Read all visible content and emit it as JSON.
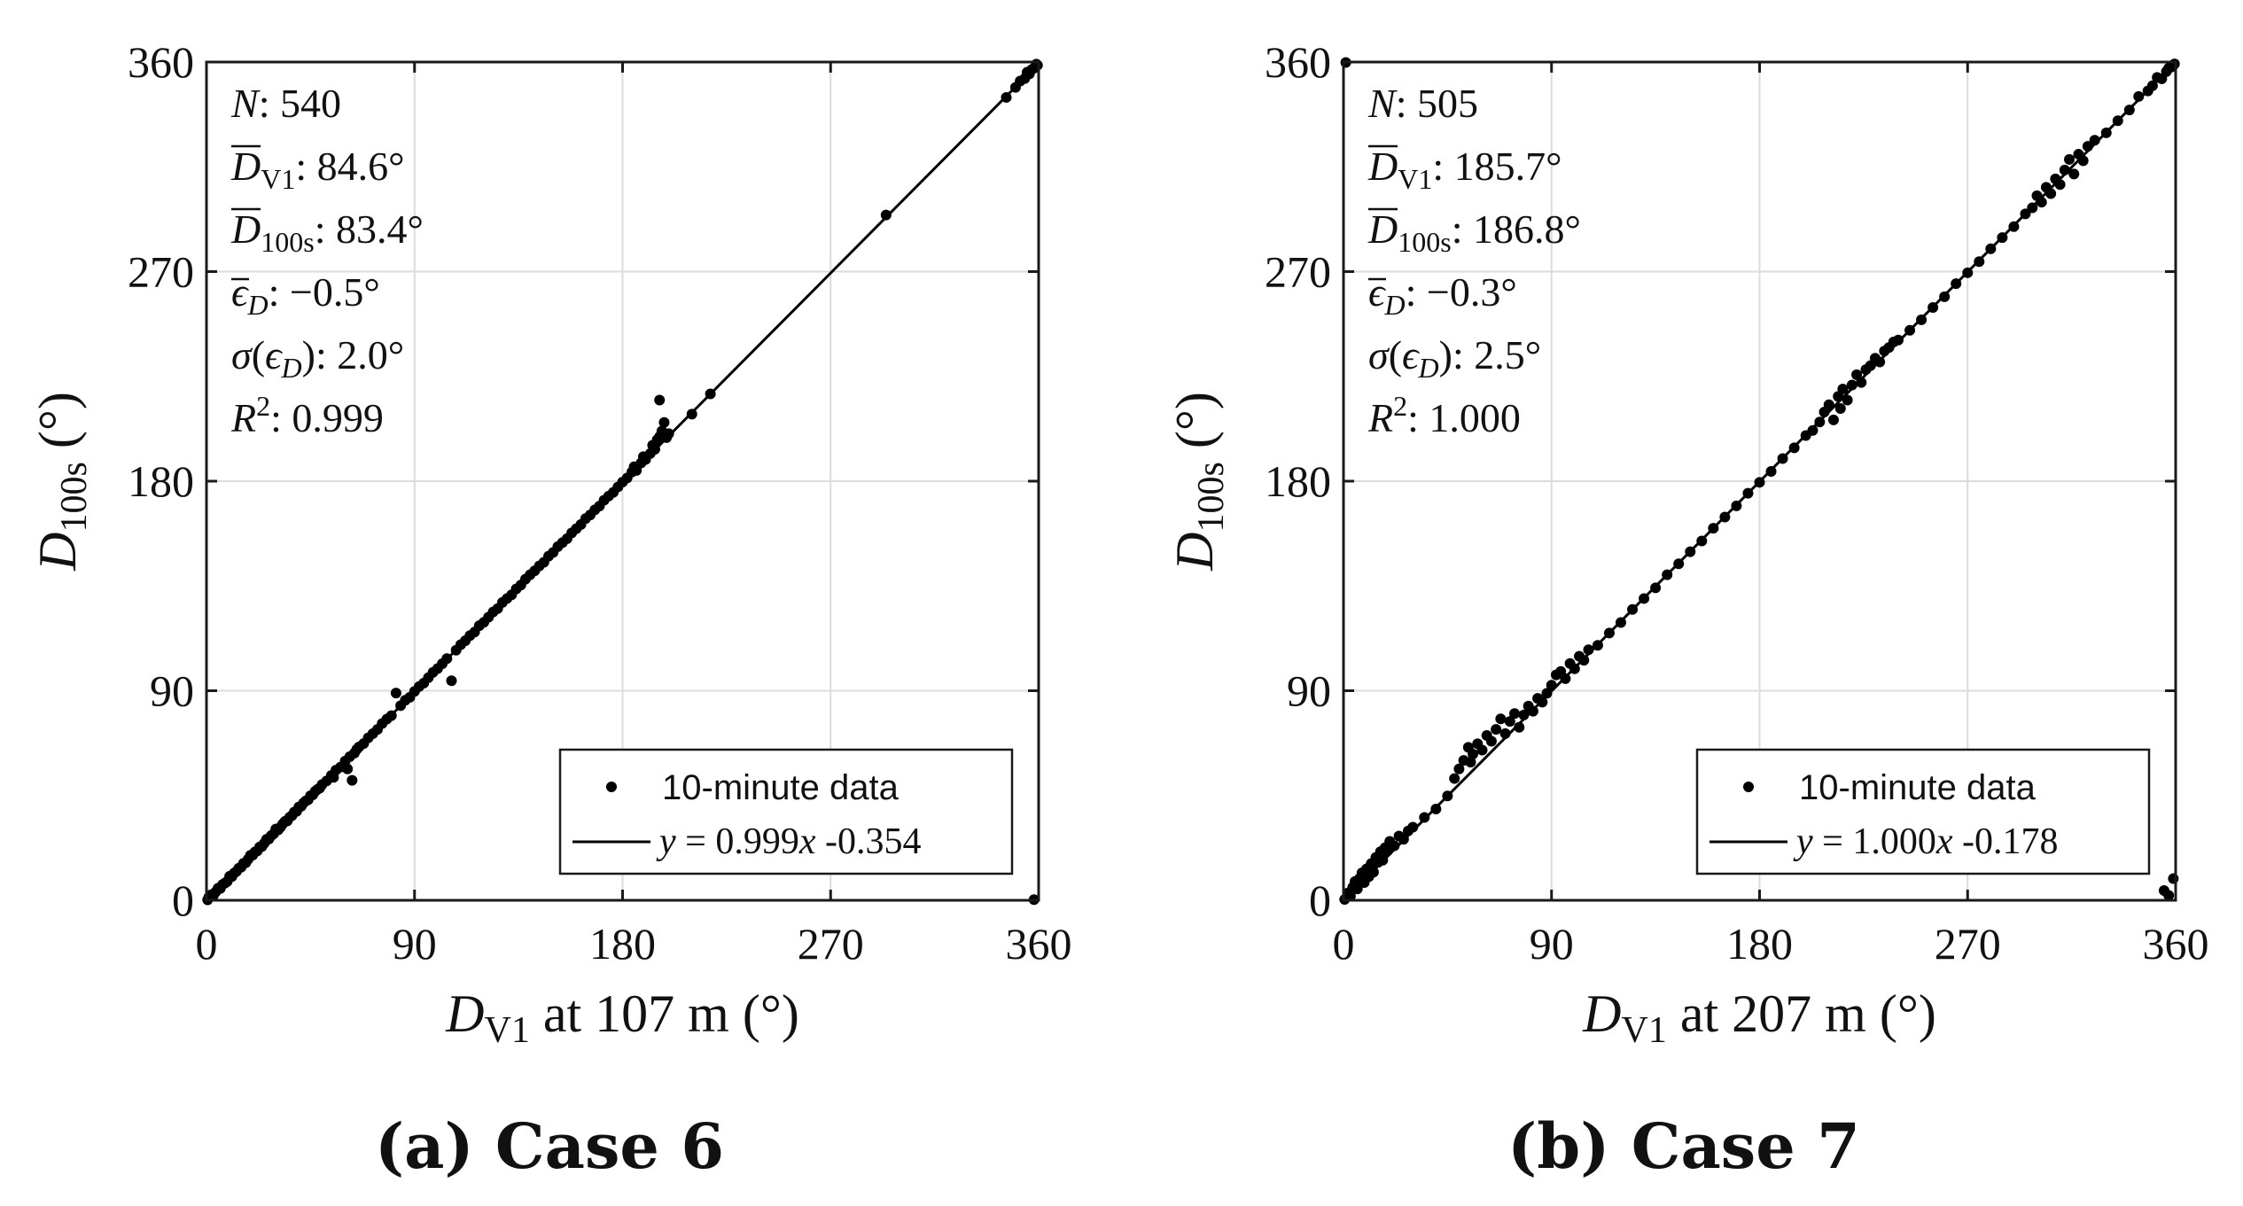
{
  "chart_data": [
    {
      "type": "scatter",
      "caption": "(a) Case 6",
      "xlabel": {
        "main": "D",
        "sub": "V1",
        "rest": " at 107 m",
        "unit": "(°)"
      },
      "ylabel": {
        "main": "D",
        "sub": "100s",
        "unit": "(°)"
      },
      "xlim": [
        0,
        360
      ],
      "ylim": [
        0,
        360
      ],
      "xticks": [
        "0",
        "90",
        "180",
        "270",
        "360"
      ],
      "yticks": [
        "0",
        "90",
        "180",
        "270",
        "360"
      ],
      "grid": true,
      "stats": {
        "N": "540",
        "Dbar_V1": "84.6°",
        "Dbar_100s": "83.4°",
        "eps_mean": "−0.5°",
        "sigma_eps": "2.0°",
        "R2": "0.999"
      },
      "fit": {
        "slope": 0.999,
        "intercept": -0.354,
        "label_y": "y",
        "label_rest": " = 0.999",
        "label_x": "x",
        "label_tail": " -0.354"
      },
      "legend": {
        "points": "10-minute data",
        "position": "bottom-right"
      },
      "points": [
        [
          0.5,
          0.2
        ],
        [
          1,
          1.3
        ],
        [
          2,
          2.4
        ],
        [
          3,
          2.1
        ],
        [
          4,
          3.6
        ],
        [
          5,
          5.2
        ],
        [
          6,
          5.1
        ],
        [
          7,
          6.8
        ],
        [
          8,
          7.4
        ],
        [
          9,
          8.1
        ],
        [
          10,
          10.3
        ],
        [
          11,
          10.2
        ],
        [
          12,
          11.7
        ],
        [
          13,
          12.4
        ],
        [
          14,
          13.8
        ],
        [
          15,
          14.2
        ],
        [
          16,
          15.9
        ],
        [
          17,
          16.1
        ],
        [
          18,
          17.6
        ],
        [
          19,
          19.3
        ],
        [
          20,
          19.4
        ],
        [
          21,
          20.8
        ],
        [
          22,
          21.2
        ],
        [
          23,
          22.9
        ],
        [
          24,
          23.1
        ],
        [
          25,
          24.5
        ],
        [
          26,
          26.2
        ],
        [
          27,
          26.3
        ],
        [
          28,
          27.8
        ],
        [
          29,
          28.5
        ],
        [
          30,
          30.6
        ],
        [
          31,
          30.2
        ],
        [
          32,
          31.4
        ],
        [
          33,
          32.8
        ],
        [
          34,
          33.9
        ],
        [
          35,
          34.1
        ],
        [
          36,
          35.7
        ],
        [
          37,
          36.4
        ],
        [
          38,
          37.9
        ],
        [
          39,
          38.2
        ],
        [
          40,
          40.1
        ],
        [
          41,
          40.4
        ],
        [
          42,
          41.8
        ],
        [
          43,
          42.7
        ],
        [
          44,
          43.2
        ],
        [
          45,
          44.9
        ],
        [
          46,
          45.3
        ],
        [
          47,
          46.8
        ],
        [
          48,
          47.6
        ],
        [
          49,
          48.2
        ],
        [
          50,
          49.7
        ],
        [
          52,
          51.3
        ],
        [
          54,
          53.6
        ],
        [
          55,
          52.8
        ],
        [
          56,
          55.9
        ],
        [
          58,
          57.2
        ],
        [
          60,
          59.8
        ],
        [
          61,
          56.4
        ],
        [
          62,
          61.7
        ],
        [
          63,
          51.5
        ],
        [
          64,
          63.2
        ],
        [
          65,
          64.8
        ],
        [
          66,
          65.9
        ],
        [
          68,
          67.3
        ],
        [
          70,
          69.8
        ],
        [
          72,
          71.6
        ],
        [
          74,
          73.4
        ],
        [
          76,
          75.9
        ],
        [
          78,
          77.8
        ],
        [
          80,
          79.3
        ],
        [
          82,
          89
        ],
        [
          84,
          83.6
        ],
        [
          86,
          85.9
        ],
        [
          88,
          87.2
        ],
        [
          90,
          89.7
        ],
        [
          92,
          91.8
        ],
        [
          94,
          93.3
        ],
        [
          96,
          95.6
        ],
        [
          98,
          97.9
        ],
        [
          100,
          99.5
        ],
        [
          102,
          101.6
        ],
        [
          104,
          103.8
        ],
        [
          106,
          94.3
        ],
        [
          108,
          107.4
        ],
        [
          110,
          109.8
        ],
        [
          112,
          111.5
        ],
        [
          114,
          113.7
        ],
        [
          116,
          115.2
        ],
        [
          118,
          117.9
        ],
        [
          120,
          119.4
        ],
        [
          122,
          121.6
        ],
        [
          124,
          123.8
        ],
        [
          126,
          125.3
        ],
        [
          128,
          127.9
        ],
        [
          130,
          129.6
        ],
        [
          132,
          131.2
        ],
        [
          134,
          133.7
        ],
        [
          136,
          135.4
        ],
        [
          138,
          137.9
        ],
        [
          140,
          139.8
        ],
        [
          142,
          141.5
        ],
        [
          144,
          143.6
        ],
        [
          146,
          145.2
        ],
        [
          148,
          147.8
        ],
        [
          150,
          149.4
        ],
        [
          152,
          151.9
        ],
        [
          154,
          153.6
        ],
        [
          156,
          155.3
        ],
        [
          158,
          157.8
        ],
        [
          160,
          159.6
        ],
        [
          162,
          161.4
        ],
        [
          164,
          163.9
        ],
        [
          166,
          165.5
        ],
        [
          168,
          167.7
        ],
        [
          170,
          169.3
        ],
        [
          172,
          171.8
        ],
        [
          174,
          173.6
        ],
        [
          176,
          175.2
        ],
        [
          178,
          177.5
        ],
        [
          180,
          179.6
        ],
        [
          182,
          181.4
        ],
        [
          184,
          183.9
        ],
        [
          185,
          186.2
        ],
        [
          186,
          184.6
        ],
        [
          188,
          187.8
        ],
        [
          189,
          190.5
        ],
        [
          190,
          189.3
        ],
        [
          192,
          191.9
        ],
        [
          193,
          195.4
        ],
        [
          194,
          193.7
        ],
        [
          195,
          197.8
        ],
        [
          196,
          199.1
        ],
        [
          197,
          201.5
        ],
        [
          198,
          205.2
        ],
        [
          199,
          198.7
        ],
        [
          200,
          200.4
        ],
        [
          196,
          214.8
        ],
        [
          210,
          208.8
        ],
        [
          218,
          217.5
        ],
        [
          294,
          294.3
        ],
        [
          346,
          344.8
        ],
        [
          350,
          349.1
        ],
        [
          352,
          351.8
        ],
        [
          354,
          352.9
        ],
        [
          355,
          355.6
        ],
        [
          356,
          354.9
        ],
        [
          357,
          356.7
        ],
        [
          358,
          357.4
        ],
        [
          359,
          359.1
        ],
        [
          359.5,
          358.6
        ],
        [
          358,
          0.3
        ]
      ]
    },
    {
      "type": "scatter",
      "caption": "(b) Case 7",
      "xlabel": {
        "main": "D",
        "sub": "V1",
        "rest": " at 207 m",
        "unit": "(°)"
      },
      "ylabel": {
        "main": "D",
        "sub": "100s",
        "unit": "(°)"
      },
      "xlim": [
        0,
        360
      ],
      "ylim": [
        0,
        360
      ],
      "xticks": [
        "0",
        "90",
        "180",
        "270",
        "360"
      ],
      "yticks": [
        "0",
        "90",
        "180",
        "270",
        "360"
      ],
      "grid": true,
      "stats": {
        "N": "505",
        "Dbar_V1": "185.7°",
        "Dbar_100s": "186.8°",
        "eps_mean": "−0.3°",
        "sigma_eps": "2.5°",
        "R2": "1.000"
      },
      "fit": {
        "slope": 1.0,
        "intercept": -0.178,
        "label_y": "y",
        "label_rest": " = 1.000",
        "label_x": "x",
        "label_tail": " -0.178"
      },
      "legend": {
        "points": "10-minute data",
        "position": "bottom-right"
      },
      "points": [
        [
          0.5,
          0.4
        ],
        [
          1,
          359.8
        ],
        [
          2,
          3.2
        ],
        [
          3,
          1.8
        ],
        [
          4,
          5.6
        ],
        [
          5,
          8.1
        ],
        [
          6,
          4.9
        ],
        [
          7,
          9.4
        ],
        [
          8,
          11.8
        ],
        [
          9,
          7.6
        ],
        [
          10,
          13.5
        ],
        [
          11,
          10.2
        ],
        [
          12,
          15.8
        ],
        [
          13,
          12.1
        ],
        [
          14,
          18.4
        ],
        [
          15,
          16.3
        ],
        [
          16,
          20.9
        ],
        [
          17,
          17.2
        ],
        [
          18,
          22.6
        ],
        [
          19,
          21.1
        ],
        [
          20,
          25.3
        ],
        [
          22,
          23.4
        ],
        [
          24,
          27.6
        ],
        [
          26,
          26.2
        ],
        [
          28,
          29.8
        ],
        [
          30,
          31.4
        ],
        [
          35,
          35.6
        ],
        [
          40,
          39.2
        ],
        [
          45,
          44.8
        ],
        [
          48,
          52.3
        ],
        [
          50,
          56.4
        ],
        [
          52,
          60.1
        ],
        [
          54,
          65.7
        ],
        [
          55,
          59.3
        ],
        [
          56,
          62.8
        ],
        [
          58,
          67.2
        ],
        [
          60,
          64.5
        ],
        [
          62,
          70.8
        ],
        [
          64,
          68.3
        ],
        [
          66,
          73.4
        ],
        [
          68,
          77.9
        ],
        [
          70,
          71.6
        ],
        [
          72,
          76.8
        ],
        [
          74,
          80.2
        ],
        [
          76,
          74.3
        ],
        [
          78,
          79.6
        ],
        [
          80,
          83.4
        ],
        [
          82,
          81.2
        ],
        [
          84,
          86.7
        ],
        [
          86,
          85.1
        ],
        [
          88,
          88.9
        ],
        [
          90,
          92.4
        ],
        [
          92,
          96.8
        ],
        [
          94,
          98.3
        ],
        [
          96,
          95.2
        ],
        [
          98,
          101.7
        ],
        [
          100,
          99.4
        ],
        [
          102,
          104.8
        ],
        [
          104,
          103.1
        ],
        [
          106,
          107.6
        ],
        [
          110,
          109.5
        ],
        [
          115,
          114.8
        ],
        [
          120,
          119.3
        ],
        [
          125,
          124.9
        ],
        [
          130,
          129.6
        ],
        [
          135,
          134.2
        ],
        [
          140,
          139.8
        ],
        [
          145,
          144.5
        ],
        [
          150,
          149.7
        ],
        [
          155,
          154.3
        ],
        [
          160,
          159.8
        ],
        [
          165,
          164.6
        ],
        [
          170,
          169.4
        ],
        [
          175,
          174.8
        ],
        [
          180,
          179.5
        ],
        [
          185,
          184.2
        ],
        [
          190,
          189.7
        ],
        [
          195,
          194.3
        ],
        [
          200,
          199.6
        ],
        [
          203,
          201.8
        ],
        [
          206,
          205.4
        ],
        [
          208,
          209.7
        ],
        [
          210,
          212.8
        ],
        [
          212,
          206.3
        ],
        [
          214,
          216.4
        ],
        [
          215,
          211.2
        ],
        [
          216,
          219.6
        ],
        [
          218,
          214.8
        ],
        [
          220,
          221.3
        ],
        [
          222,
          225.7
        ],
        [
          224,
          222.4
        ],
        [
          226,
          227.9
        ],
        [
          228,
          229.6
        ],
        [
          230,
          232.8
        ],
        [
          232,
          231.2
        ],
        [
          234,
          235.9
        ],
        [
          236,
          237.4
        ],
        [
          238,
          239.8
        ],
        [
          240,
          240.6
        ],
        [
          245,
          244.8
        ],
        [
          250,
          249.3
        ],
        [
          255,
          254.6
        ],
        [
          260,
          259.2
        ],
        [
          265,
          264.8
        ],
        [
          270,
          269.5
        ],
        [
          275,
          274.3
        ],
        [
          280,
          279.8
        ],
        [
          285,
          284.6
        ],
        [
          290,
          289.3
        ],
        [
          295,
          294.8
        ],
        [
          298,
          297.4
        ],
        [
          300,
          302.6
        ],
        [
          302,
          299.8
        ],
        [
          304,
          306.2
        ],
        [
          306,
          303.5
        ],
        [
          308,
          309.8
        ],
        [
          310,
          307.4
        ],
        [
          312,
          313.6
        ],
        [
          314,
          318.2
        ],
        [
          316,
          311.9
        ],
        [
          318,
          320.4
        ],
        [
          320,
          317.6
        ],
        [
          322,
          323.8
        ],
        [
          325,
          326.4
        ],
        [
          330,
          329.6
        ],
        [
          335,
          334.8
        ],
        [
          340,
          339.4
        ],
        [
          344,
          345.2
        ],
        [
          348,
          347.6
        ],
        [
          350,
          349.8
        ],
        [
          352,
          353.4
        ],
        [
          354,
          352.8
        ],
        [
          356,
          355.9
        ],
        [
          357,
          357.4
        ],
        [
          358,
          357.8
        ],
        [
          359,
          358.6
        ],
        [
          359.5,
          359.2
        ],
        [
          355,
          4.2
        ],
        [
          357,
          2.1
        ],
        [
          359,
          9.3
        ]
      ]
    }
  ]
}
